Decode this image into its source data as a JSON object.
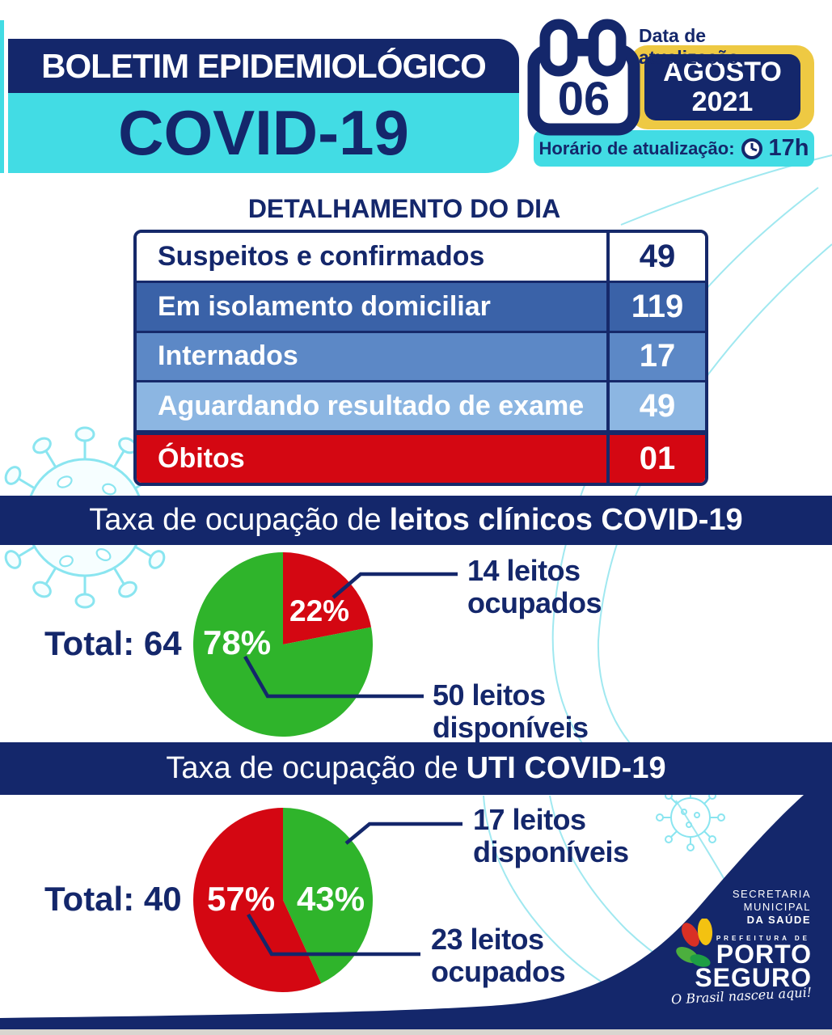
{
  "header": {
    "title_line1": "BOLETIM EPIDEMIOLÓGICO",
    "title_line2": "COVID-19"
  },
  "update_badge": {
    "date_label": "Data de atualização:",
    "day": "06",
    "month": "AGOSTO",
    "year": "2021",
    "time_label": "Horário de atualização:",
    "time": "17h"
  },
  "daily_table": {
    "title": "DETALHAMENTO DO DIA",
    "rows": [
      {
        "label": "Suspeitos e confirmados",
        "value": "49"
      },
      {
        "label": "Em isolamento domiciliar",
        "value": "119"
      },
      {
        "label": "Internados",
        "value": "17"
      },
      {
        "label": "Aguardando resultado de exame",
        "value": "49"
      },
      {
        "label": "Óbitos",
        "value": "01"
      }
    ]
  },
  "sections": [
    {
      "title_regular": "Taxa de ocupação de",
      "title_bold": "leitos clínicos COVID-19"
    },
    {
      "title_regular": "Taxa de ocupação de",
      "title_bold": "UTI COVID-19"
    }
  ],
  "chart_data": [
    {
      "type": "pie",
      "title": "Taxa de ocupação de leitos clínicos COVID-19",
      "total": 64,
      "total_label": "Total: 64",
      "slices": [
        {
          "value": 14,
          "pct": 22,
          "pct_label": "22%",
          "label_line1": "14 leitos",
          "label_line2": "ocupados",
          "color": "#d40712"
        },
        {
          "value": 50,
          "pct": 78,
          "pct_label": "78%",
          "label_line1": "50 leitos",
          "label_line2": "disponíveis",
          "color": "#2fb42b"
        }
      ],
      "legend_position": "right",
      "start_angle": "12-oclock-clockwise"
    },
    {
      "type": "pie",
      "title": "Taxa de ocupação de UTI COVID-19",
      "total": 40,
      "total_label": "Total: 40",
      "slices": [
        {
          "value": 17,
          "pct": 43,
          "pct_label": "43%",
          "label_line1": "17 leitos",
          "label_line2": "disponíveis",
          "color": "#2fb42b"
        },
        {
          "value": 23,
          "pct": 57,
          "pct_label": "57%",
          "label_line1": "23 leitos",
          "label_line2": "ocupados",
          "color": "#d40712"
        }
      ],
      "legend_position": "right",
      "start_angle": "12-oclock-clockwise"
    }
  ],
  "footer": {
    "secretaria_line1": "SECRETARIA",
    "secretaria_line2": "MUNICIPAL",
    "secretaria_line3": "DA SAÚDE",
    "prefeitura": "PREFEITURA DE",
    "city_line1": "PORTO",
    "city_line2": "SEGURO",
    "slogan": "O Brasil nasceu aqui!"
  },
  "colors": {
    "navy": "#14276b",
    "cyan": "#42dce4",
    "yellow": "#eec943",
    "red": "#d40712",
    "green": "#2fb42b",
    "row_blue_dark": "#3a62a8",
    "row_blue_mid": "#5c88c6",
    "row_blue_light": "#8cb6e2",
    "decor_cyan": "#6edde9"
  }
}
